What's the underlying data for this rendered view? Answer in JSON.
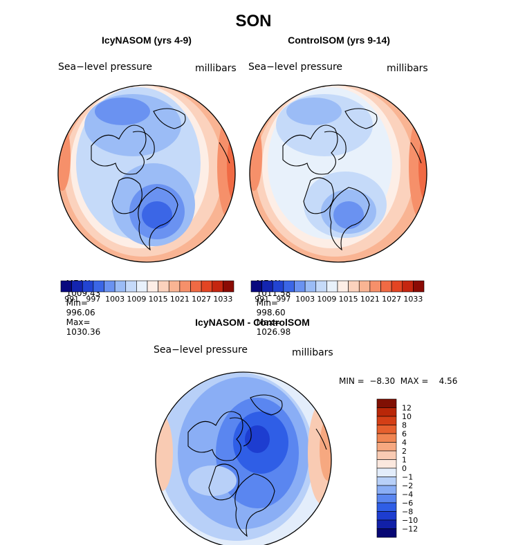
{
  "page_title": "SON",
  "colors": {
    "scale": [
      "#08087e",
      "#1425b0",
      "#2244d2",
      "#3b66e6",
      "#6a92f1",
      "#9bbcf6",
      "#c5daf9",
      "#e8f1fb",
      "#fdeee6",
      "#fbd2bd",
      "#f9b493",
      "#f6906a",
      "#f06a44",
      "#e34523",
      "#c52610",
      "#8b0b05"
    ],
    "diff_scale": [
      "#070774",
      "#1120a7",
      "#1d3dd0",
      "#2f5ee6",
      "#5a86f0",
      "#8aaef5",
      "#b8d0f8",
      "#e3edfb",
      "#fbe8de",
      "#f9cbb3",
      "#f6a880",
      "#f08552",
      "#e6602e",
      "#d43f16",
      "#b92708",
      "#801004"
    ],
    "coast": "#000000"
  },
  "chart_data": [
    {
      "type": "heatmap",
      "title": "IcyNASOM (yrs 4-9)",
      "variable_label": "Sea−level pressure",
      "units": "millibars",
      "stats": [
        {
          "label": "MEAN=",
          "value": "1009.43"
        },
        {
          "label": "Min=",
          "value": "996.06"
        },
        {
          "label": "Max=",
          "value": "1030.36"
        }
      ],
      "colorbar_labels": [
        "991",
        "997",
        "1003",
        "1009",
        "1015",
        "1021",
        "1027",
        "1033"
      ],
      "levels": [
        991,
        1033
      ]
    },
    {
      "type": "heatmap",
      "title": "ControlSOM (yrs 9-14)",
      "variable_label": "Sea−level pressure",
      "units": "millibars",
      "stats": [
        {
          "label": "MEAN=",
          "value": "1011.58"
        },
        {
          "label": "Min=",
          "value": "998.60"
        },
        {
          "label": "Max=",
          "value": "1026.98"
        }
      ],
      "colorbar_labels": [
        "991",
        "997",
        "1003",
        "1009",
        "1015",
        "1021",
        "1027",
        "1033"
      ],
      "levels": [
        991,
        1033
      ]
    },
    {
      "type": "heatmap",
      "title": "IcyNASOM - ControlSOM",
      "variable_label": "Sea−level pressure",
      "units": "millibars",
      "minmax_text": "MIN =  −8.30  MAX =    4.56",
      "colorbar_labels": [
        "12",
        "10",
        "8",
        "6",
        "4",
        "2",
        "1",
        "0",
        "−1",
        "−2",
        "−4",
        "−6",
        "−8",
        "−10",
        "−12"
      ],
      "levels": [
        -12,
        12
      ]
    }
  ]
}
